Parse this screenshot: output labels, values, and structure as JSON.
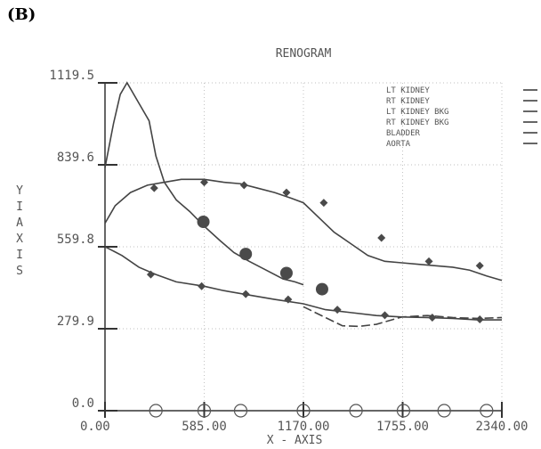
{
  "panel_label": "(B)",
  "chart_data": {
    "type": "line",
    "title": "RENOGRAM",
    "xlabel": "X - AXIS",
    "ylabel": "Y I AXIS",
    "xlim": [
      0,
      2340
    ],
    "ylim": [
      0,
      1119.5
    ],
    "x_ticks": [
      "0.00",
      "585.00",
      "1170.00",
      "1755.00",
      "2340.00"
    ],
    "x_tick_values": [
      0,
      585,
      1170,
      1755,
      2340
    ],
    "y_ticks": [
      "0.0",
      "279.9",
      "559.8",
      "839.6",
      "1119.5"
    ],
    "y_tick_values": [
      0,
      279.9,
      559.8,
      839.6,
      1119.5
    ],
    "grid": true,
    "legend_position": "top-right",
    "series": [
      {
        "name": "LT KIDNEY",
        "marker": "diamond",
        "x": [
          0,
          60,
          150,
          250,
          350,
          450,
          585,
          700,
          800,
          900,
          1000,
          1100,
          1170,
          1260,
          1350,
          1450,
          1550,
          1650,
          1750,
          1850,
          1950,
          2050,
          2150,
          2250,
          2340
        ],
        "y": [
          640,
          700,
          745,
          770,
          780,
          790,
          790,
          780,
          775,
          760,
          745,
          725,
          710,
          660,
          610,
          570,
          530,
          510,
          505,
          500,
          495,
          490,
          480,
          460,
          445
        ],
        "marker_x": [
          290,
          585,
          820,
          1070,
          1290,
          1630,
          1910,
          2210
        ],
        "marker_y": [
          760,
          780,
          770,
          745,
          710,
          590,
          510,
          495
        ]
      },
      {
        "name": "RT KIDNEY",
        "marker": "circle",
        "x": [
          0,
          50,
          90,
          130,
          200,
          260,
          300,
          350,
          420,
          500,
          585,
          680,
          760,
          850,
          950,
          1050,
          1120,
          1170
        ],
        "y": [
          830,
          980,
          1080,
          1120,
          1050,
          990,
          870,
          780,
          720,
          680,
          630,
          580,
          540,
          510,
          480,
          450,
          440,
          430
        ],
        "marker_x": [
          580,
          830,
          1070,
          1280
        ],
        "marker_y": [
          645,
          535,
          470,
          415
        ]
      },
      {
        "name": "AORTA",
        "marker": "diamond",
        "x": [
          0,
          100,
          200,
          300,
          420,
          585,
          700,
          850,
          1000,
          1170,
          1300,
          1450,
          1600,
          1750,
          1900,
          2050,
          2200,
          2340
        ],
        "y": [
          560,
          530,
          490,
          465,
          440,
          425,
          410,
          395,
          380,
          365,
          345,
          335,
          325,
          320,
          318,
          315,
          310,
          310
        ],
        "marker_x": [
          270,
          570,
          830,
          1080,
          1370,
          1650,
          1930,
          2210
        ],
        "marker_y": [
          465,
          425,
          398,
          380,
          345,
          326,
          318,
          312
        ]
      },
      {
        "name": "BLADDER",
        "marker": "none",
        "x": [
          1170,
          1300,
          1400,
          1500,
          1600,
          1750,
          1900,
          2050,
          2200,
          2340
        ],
        "y": [
          355,
          318,
          290,
          288,
          295,
          320,
          325,
          318,
          315,
          318
        ]
      }
    ],
    "legend": [
      "LT KIDNEY",
      "RT KIDNEY",
      "LT KIDNEY BKG",
      "RT KIDNEY BKG",
      "BLADDER",
      "AORTA"
    ],
    "x_axis_markers": [
      300,
      585,
      800,
      1170,
      1480,
      1760,
      2000,
      2250
    ],
    "colors": {
      "line": "#444444",
      "grid": "#aaaaaa",
      "marker": "#555555"
    }
  }
}
